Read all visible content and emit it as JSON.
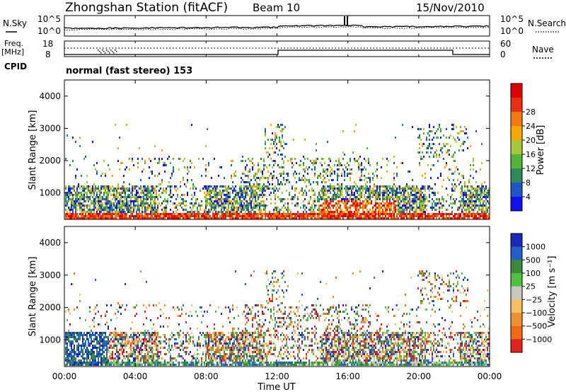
{
  "header": {
    "title": "Zhongshan Station (fitACF)",
    "beam": "Beam 10",
    "date": "15/Nov/2010"
  },
  "noise_panel": {
    "left_label": "N.Sky",
    "right_label": "N.Search",
    "left_ticks": [
      "10^5",
      "10^0"
    ],
    "right_ticks": [
      "10^5",
      "10^0"
    ]
  },
  "freq_panel": {
    "left_label_line1": "Freq.",
    "left_label_line2": "[MHz]",
    "right_label": "Nave",
    "left_ticks": [
      "18",
      "8"
    ],
    "right_ticks": [
      "60",
      "0"
    ]
  },
  "cpid": {
    "label": "CPID",
    "value": "normal (fast stereo) 153"
  },
  "chart_data": [
    {
      "type": "heatmap",
      "name": "power",
      "ylabel": "Slant Range [km]",
      "yticks": [
        "1000",
        "2000",
        "3000",
        "4000"
      ],
      "ylim": [
        180,
        4500
      ],
      "colorbar_label": "Power [dB]",
      "colorbar_ticks": [
        "4",
        "8",
        "12",
        "16",
        "20",
        "24",
        "28"
      ],
      "colors": [
        "#1010f0",
        "#2055c8",
        "#2e8a5a",
        "#56b33a",
        "#a8c838",
        "#f5a800",
        "#f07a10",
        "#e83010",
        "#e00000"
      ]
    },
    {
      "type": "heatmap",
      "name": "velocity",
      "ylabel": "Slant Range [km]",
      "yticks": [
        "1000",
        "2000",
        "3000",
        "4000"
      ],
      "ylim": [
        180,
        4500
      ],
      "colorbar_label": "Velocity [m s⁻¹]",
      "colorbar_ticks": [
        "1000",
        "500",
        "100",
        "25",
        "−25",
        "−100",
        "−500",
        "−1000"
      ],
      "colors": [
        "#1a2ab8",
        "#2060c8",
        "#3a8a3a",
        "#50c040",
        "#c8c8c0",
        "#f5c060",
        "#f09030",
        "#f06a10",
        "#e82020"
      ]
    }
  ],
  "xaxis": {
    "label": "Time UT",
    "ticks": [
      "00:00",
      "04:00",
      "08:00",
      "12:00",
      "16:00",
      "20:00",
      "00:00"
    ]
  }
}
